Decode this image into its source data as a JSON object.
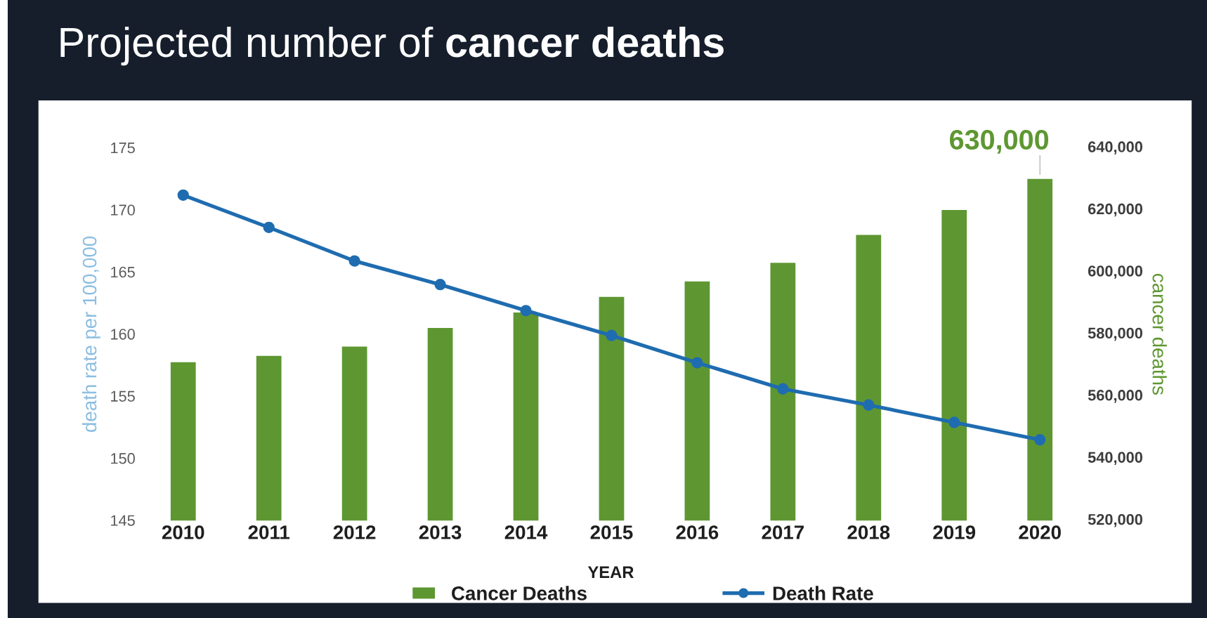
{
  "chart_data": {
    "type": "bar",
    "title": "Projected number of **cancer deaths**",
    "xlabel": "YEAR",
    "ylabel": "death rate per 100,000",
    "y2label": "cancer deaths",
    "categories": [
      "2010",
      "2011",
      "2012",
      "2013",
      "2014",
      "2015",
      "2016",
      "2017",
      "2018",
      "2019",
      "2020"
    ],
    "series": [
      {
        "name": "Cancer Deaths",
        "axis": "y2",
        "color": "#5e9732",
        "values": [
          571000,
          573000,
          576000,
          582000,
          587000,
          592000,
          597000,
          603000,
          612000,
          620000,
          630000
        ]
      },
      {
        "name": "Death Rate",
        "type": "line",
        "axis": "y",
        "color": "#1f6cb0",
        "marker": "circle",
        "values": [
          171.2,
          168.6,
          165.9,
          164.0,
          161.9,
          159.9,
          157.7,
          155.6,
          154.3,
          152.9,
          151.5
        ]
      }
    ],
    "ylim": [
      145,
      175
    ],
    "yticks": [
      145,
      150,
      155,
      160,
      165,
      170,
      175
    ],
    "y2lim": [
      520000,
      640000
    ],
    "y2ticks": [
      {
        "value": 520000,
        "label": "520,000"
      },
      {
        "value": 540000,
        "label": "540,000"
      },
      {
        "value": 560000,
        "label": "560,000"
      },
      {
        "value": 580000,
        "label": "580,000"
      },
      {
        "value": 600000,
        "label": "600,000"
      },
      {
        "value": 620000,
        "label": "620,000"
      },
      {
        "value": 640000,
        "label": "640,000"
      }
    ],
    "annotations": [
      "630,000"
    ],
    "grid": false,
    "legend": "bottom"
  }
}
